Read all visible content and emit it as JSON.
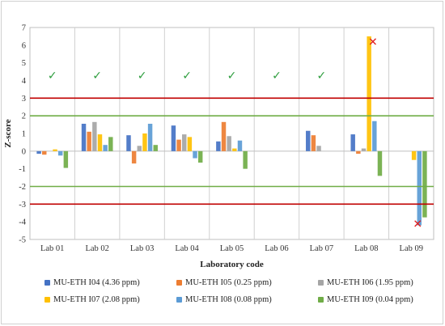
{
  "chart_data": {
    "type": "bar",
    "categories": [
      "Lab 01",
      "Lab 02",
      "Lab 03",
      "Lab 04",
      "Lab 05",
      "Lab 06",
      "Lab 07",
      "Lab 08",
      "Lab 09"
    ],
    "series": [
      {
        "name": "MU-ETH I04 (4.36 ppm)",
        "color": "#4472C4",
        "values": [
          -0.15,
          1.55,
          0.9,
          1.45,
          0.55,
          0,
          1.15,
          0.95,
          0
        ]
      },
      {
        "name": "MU-ETH I05 (0.25 ppm)",
        "color": "#ED7D31",
        "values": [
          -0.2,
          1.1,
          -0.7,
          0.65,
          1.65,
          0,
          0.9,
          -0.15,
          0
        ]
      },
      {
        "name": "MU-ETH I06 (1.95 ppm)",
        "color": "#A5A5A5",
        "values": [
          0,
          1.65,
          0.3,
          0.95,
          0.85,
          0,
          0.3,
          0.15,
          0
        ]
      },
      {
        "name": "MU-ETH I07 (2.08 ppm)",
        "color": "#FFC000",
        "values": [
          0.1,
          0.95,
          1.0,
          0.8,
          0.15,
          0,
          0,
          6.5,
          -0.5
        ]
      },
      {
        "name": "MU-ETH I08 (0.08 ppm)",
        "color": "#5B9BD5",
        "values": [
          -0.25,
          0.35,
          1.55,
          -0.4,
          0.6,
          0,
          0,
          1.7,
          -4.2
        ]
      },
      {
        "name": "MU-ETH I09 (0.04 ppm)",
        "color": "#70AD47",
        "values": [
          -0.95,
          0.8,
          0.35,
          -0.65,
          -1.0,
          0,
          0,
          -1.4,
          -3.75
        ]
      }
    ],
    "xlabel": "Laboratory code",
    "ylabel": "Z-score",
    "ylim": [
      -5,
      7
    ],
    "yticks": [
      -5,
      -4,
      -3,
      -2,
      -1,
      0,
      1,
      2,
      3,
      4,
      5,
      6,
      7
    ],
    "reference_lines": [
      {
        "y": 3,
        "color": "#C00000"
      },
      {
        "y": -3,
        "color": "#C00000"
      },
      {
        "y": 2,
        "color": "#70AD47"
      },
      {
        "y": -2,
        "color": "#70AD47"
      }
    ],
    "markers": [
      {
        "category": "Lab 01",
        "symbol": "✓",
        "color": "#2E9E3E",
        "y": 4.3
      },
      {
        "category": "Lab 02",
        "symbol": "✓",
        "color": "#2E9E3E",
        "y": 4.3
      },
      {
        "category": "Lab 03",
        "symbol": "✓",
        "color": "#2E9E3E",
        "y": 4.3
      },
      {
        "category": "Lab 04",
        "symbol": "✓",
        "color": "#2E9E3E",
        "y": 4.3
      },
      {
        "category": "Lab 05",
        "symbol": "✓",
        "color": "#2E9E3E",
        "y": 4.3
      },
      {
        "category": "Lab 06",
        "symbol": "✓",
        "color": "#2E9E3E",
        "y": 4.3
      },
      {
        "category": "Lab 07",
        "symbol": "✓",
        "color": "#2E9E3E",
        "y": 4.3
      },
      {
        "category": "Lab 08",
        "symbol": "✕",
        "color": "#E02020",
        "y": 6.2
      },
      {
        "category": "Lab 09",
        "symbol": "✕",
        "color": "#E02020",
        "y": -4.1
      }
    ],
    "grid": false,
    "legend_position": "bottom"
  }
}
